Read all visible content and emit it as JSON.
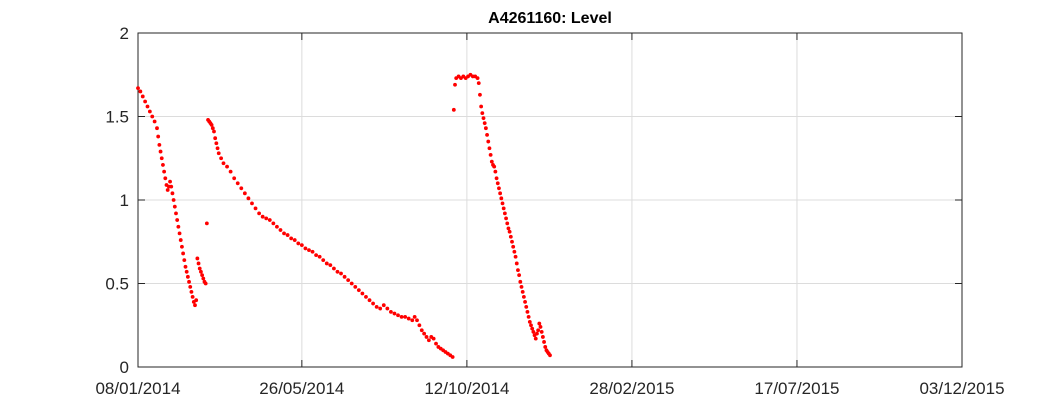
{
  "chart_data": {
    "type": "scatter",
    "title": "A4261160: Level",
    "xlabel": "",
    "ylabel": "",
    "x_type": "date",
    "xlim": [
      "2014-01-08",
      "2015-12-03"
    ],
    "ylim": [
      0,
      2
    ],
    "x_ticks": [
      "2014-01-08",
      "2014-05-26",
      "2014-10-12",
      "2015-02-28",
      "2015-07-17",
      "2015-12-03"
    ],
    "x_tick_labels": [
      "08/01/2014",
      "26/05/2014",
      "12/10/2014",
      "28/02/2015",
      "17/07/2015",
      "03/12/2015"
    ],
    "y_ticks": [
      0,
      0.5,
      1,
      1.5,
      2
    ],
    "y_tick_labels": [
      "0",
      "0.5",
      "1",
      "1.5",
      "2"
    ],
    "grid": true,
    "legend": "none",
    "series": [
      {
        "color": "#ff0000",
        "marker": "dot",
        "points": [
          [
            "2014-01-08",
            1.67
          ],
          [
            "2014-01-10",
            1.65
          ],
          [
            "2014-01-12",
            1.62
          ],
          [
            "2014-01-14",
            1.59
          ],
          [
            "2014-01-16",
            1.56
          ],
          [
            "2014-01-18",
            1.53
          ],
          [
            "2014-01-20",
            1.5
          ],
          [
            "2014-01-22",
            1.47
          ],
          [
            "2014-01-24",
            1.43
          ],
          [
            "2014-01-25",
            1.38
          ],
          [
            "2014-01-26",
            1.33
          ],
          [
            "2014-01-27",
            1.29
          ],
          [
            "2014-01-28",
            1.25
          ],
          [
            "2014-01-29",
            1.21
          ],
          [
            "2014-01-30",
            1.17
          ],
          [
            "2014-01-31",
            1.13
          ],
          [
            "2014-02-01",
            1.09
          ],
          [
            "2014-02-02",
            1.06
          ],
          [
            "2014-02-03",
            1.08
          ],
          [
            "2014-02-04",
            1.11
          ],
          [
            "2014-02-05",
            1.08
          ],
          [
            "2014-02-06",
            1.04
          ],
          [
            "2014-02-07",
            1.0
          ],
          [
            "2014-02-08",
            0.96
          ],
          [
            "2014-02-09",
            0.92
          ],
          [
            "2014-02-10",
            0.88
          ],
          [
            "2014-02-11",
            0.84
          ],
          [
            "2014-02-12",
            0.8
          ],
          [
            "2014-02-13",
            0.76
          ],
          [
            "2014-02-14",
            0.72
          ],
          [
            "2014-02-15",
            0.68
          ],
          [
            "2014-02-16",
            0.64
          ],
          [
            "2014-02-17",
            0.6
          ],
          [
            "2014-02-18",
            0.57
          ],
          [
            "2014-02-19",
            0.54
          ],
          [
            "2014-02-20",
            0.51
          ],
          [
            "2014-02-21",
            0.48
          ],
          [
            "2014-02-22",
            0.45
          ],
          [
            "2014-02-23",
            0.42
          ],
          [
            "2014-02-24",
            0.39
          ],
          [
            "2014-02-25",
            0.37
          ],
          [
            "2014-02-26",
            0.4
          ],
          [
            "2014-02-27",
            0.65
          ],
          [
            "2014-02-28",
            0.62
          ],
          [
            "2014-03-01",
            0.59
          ],
          [
            "2014-03-02",
            0.57
          ],
          [
            "2014-03-03",
            0.55
          ],
          [
            "2014-03-04",
            0.53
          ],
          [
            "2014-03-05",
            0.51
          ],
          [
            "2014-03-06",
            0.5
          ],
          [
            "2014-03-07",
            0.86
          ],
          [
            "2014-03-08",
            1.48
          ],
          [
            "2014-03-09",
            1.47
          ],
          [
            "2014-03-10",
            1.46
          ],
          [
            "2014-03-11",
            1.45
          ],
          [
            "2014-03-12",
            1.43
          ],
          [
            "2014-03-13",
            1.41
          ],
          [
            "2014-03-14",
            1.37
          ],
          [
            "2014-03-15",
            1.34
          ],
          [
            "2014-03-16",
            1.31
          ],
          [
            "2014-03-17",
            1.28
          ],
          [
            "2014-03-19",
            1.25
          ],
          [
            "2014-03-21",
            1.22
          ],
          [
            "2014-03-24",
            1.2
          ],
          [
            "2014-03-27",
            1.17
          ],
          [
            "2014-03-30",
            1.13
          ],
          [
            "2014-04-02",
            1.1
          ],
          [
            "2014-04-05",
            1.07
          ],
          [
            "2014-04-08",
            1.04
          ],
          [
            "2014-04-11",
            1.01
          ],
          [
            "2014-04-14",
            0.98
          ],
          [
            "2014-04-17",
            0.95
          ],
          [
            "2014-04-20",
            0.92
          ],
          [
            "2014-04-23",
            0.9
          ],
          [
            "2014-04-26",
            0.89
          ],
          [
            "2014-04-29",
            0.88
          ],
          [
            "2014-05-02",
            0.86
          ],
          [
            "2014-05-05",
            0.84
          ],
          [
            "2014-05-08",
            0.82
          ],
          [
            "2014-05-11",
            0.8
          ],
          [
            "2014-05-14",
            0.79
          ],
          [
            "2014-05-17",
            0.77
          ],
          [
            "2014-05-20",
            0.76
          ],
          [
            "2014-05-23",
            0.74
          ],
          [
            "2014-05-26",
            0.73
          ],
          [
            "2014-05-29",
            0.71
          ],
          [
            "2014-06-01",
            0.7
          ],
          [
            "2014-06-04",
            0.69
          ],
          [
            "2014-06-07",
            0.67
          ],
          [
            "2014-06-10",
            0.66
          ],
          [
            "2014-06-13",
            0.64
          ],
          [
            "2014-06-16",
            0.62
          ],
          [
            "2014-06-19",
            0.61
          ],
          [
            "2014-06-22",
            0.59
          ],
          [
            "2014-06-25",
            0.57
          ],
          [
            "2014-06-28",
            0.56
          ],
          [
            "2014-07-01",
            0.54
          ],
          [
            "2014-07-04",
            0.52
          ],
          [
            "2014-07-07",
            0.5
          ],
          [
            "2014-07-10",
            0.48
          ],
          [
            "2014-07-13",
            0.46
          ],
          [
            "2014-07-16",
            0.44
          ],
          [
            "2014-07-19",
            0.42
          ],
          [
            "2014-07-22",
            0.4
          ],
          [
            "2014-07-25",
            0.38
          ],
          [
            "2014-07-28",
            0.36
          ],
          [
            "2014-07-31",
            0.35
          ],
          [
            "2014-08-03",
            0.37
          ],
          [
            "2014-08-06",
            0.35
          ],
          [
            "2014-08-09",
            0.33
          ],
          [
            "2014-08-12",
            0.32
          ],
          [
            "2014-08-15",
            0.31
          ],
          [
            "2014-08-18",
            0.3
          ],
          [
            "2014-08-21",
            0.3
          ],
          [
            "2014-08-24",
            0.29
          ],
          [
            "2014-08-27",
            0.28
          ],
          [
            "2014-08-29",
            0.3
          ],
          [
            "2014-08-31",
            0.28
          ],
          [
            "2014-09-02",
            0.25
          ],
          [
            "2014-09-04",
            0.22
          ],
          [
            "2014-09-06",
            0.2
          ],
          [
            "2014-09-08",
            0.18
          ],
          [
            "2014-09-10",
            0.16
          ],
          [
            "2014-09-12",
            0.18
          ],
          [
            "2014-09-14",
            0.17
          ],
          [
            "2014-09-16",
            0.14
          ],
          [
            "2014-09-18",
            0.12
          ],
          [
            "2014-09-20",
            0.11
          ],
          [
            "2014-09-22",
            0.1
          ],
          [
            "2014-09-24",
            0.09
          ],
          [
            "2014-09-26",
            0.08
          ],
          [
            "2014-09-28",
            0.07
          ],
          [
            "2014-09-30",
            0.06
          ],
          [
            "2014-10-01",
            1.54
          ],
          [
            "2014-10-02",
            1.69
          ],
          [
            "2014-10-03",
            1.73
          ],
          [
            "2014-10-05",
            1.74
          ],
          [
            "2014-10-07",
            1.73
          ],
          [
            "2014-10-09",
            1.74
          ],
          [
            "2014-10-11",
            1.73
          ],
          [
            "2014-10-13",
            1.74
          ],
          [
            "2014-10-15",
            1.75
          ],
          [
            "2014-10-17",
            1.74
          ],
          [
            "2014-10-19",
            1.74
          ],
          [
            "2014-10-21",
            1.73
          ],
          [
            "2014-10-22",
            1.7
          ],
          [
            "2014-10-23",
            1.63
          ],
          [
            "2014-10-24",
            1.56
          ],
          [
            "2014-10-25",
            1.52
          ],
          [
            "2014-10-26",
            1.49
          ],
          [
            "2014-10-27",
            1.46
          ],
          [
            "2014-10-28",
            1.43
          ],
          [
            "2014-10-29",
            1.39
          ],
          [
            "2014-10-30",
            1.35
          ],
          [
            "2014-10-31",
            1.31
          ],
          [
            "2014-11-01",
            1.27
          ],
          [
            "2014-11-02",
            1.23
          ],
          [
            "2014-11-03",
            1.21
          ],
          [
            "2014-11-04",
            1.2
          ],
          [
            "2014-11-05",
            1.17
          ],
          [
            "2014-11-06",
            1.13
          ],
          [
            "2014-11-07",
            1.1
          ],
          [
            "2014-11-08",
            1.07
          ],
          [
            "2014-11-09",
            1.04
          ],
          [
            "2014-11-10",
            1.01
          ],
          [
            "2014-11-11",
            0.98
          ],
          [
            "2014-11-12",
            0.95
          ],
          [
            "2014-11-13",
            0.92
          ],
          [
            "2014-11-14",
            0.89
          ],
          [
            "2014-11-15",
            0.86
          ],
          [
            "2014-11-16",
            0.83
          ],
          [
            "2014-11-17",
            0.81
          ],
          [
            "2014-11-18",
            0.78
          ],
          [
            "2014-11-19",
            0.75
          ],
          [
            "2014-11-20",
            0.72
          ],
          [
            "2014-11-21",
            0.69
          ],
          [
            "2014-11-22",
            0.66
          ],
          [
            "2014-11-23",
            0.62
          ],
          [
            "2014-11-24",
            0.58
          ],
          [
            "2014-11-25",
            0.55
          ],
          [
            "2014-11-26",
            0.51
          ],
          [
            "2014-11-27",
            0.48
          ],
          [
            "2014-11-28",
            0.45
          ],
          [
            "2014-11-29",
            0.42
          ],
          [
            "2014-11-30",
            0.39
          ],
          [
            "2014-12-01",
            0.36
          ],
          [
            "2014-12-02",
            0.33
          ],
          [
            "2014-12-03",
            0.3
          ],
          [
            "2014-12-04",
            0.27
          ],
          [
            "2014-12-05",
            0.25
          ],
          [
            "2014-12-06",
            0.23
          ],
          [
            "2014-12-07",
            0.21
          ],
          [
            "2014-12-08",
            0.19
          ],
          [
            "2014-12-09",
            0.17
          ],
          [
            "2014-12-10",
            0.2
          ],
          [
            "2014-12-11",
            0.22
          ],
          [
            "2014-12-12",
            0.26
          ],
          [
            "2014-12-13",
            0.24
          ],
          [
            "2014-12-14",
            0.21
          ],
          [
            "2014-12-15",
            0.18
          ],
          [
            "2014-12-16",
            0.15
          ],
          [
            "2014-12-17",
            0.12
          ],
          [
            "2014-12-18",
            0.1
          ],
          [
            "2014-12-19",
            0.09
          ],
          [
            "2014-12-20",
            0.08
          ],
          [
            "2014-12-21",
            0.07
          ]
        ]
      }
    ]
  }
}
